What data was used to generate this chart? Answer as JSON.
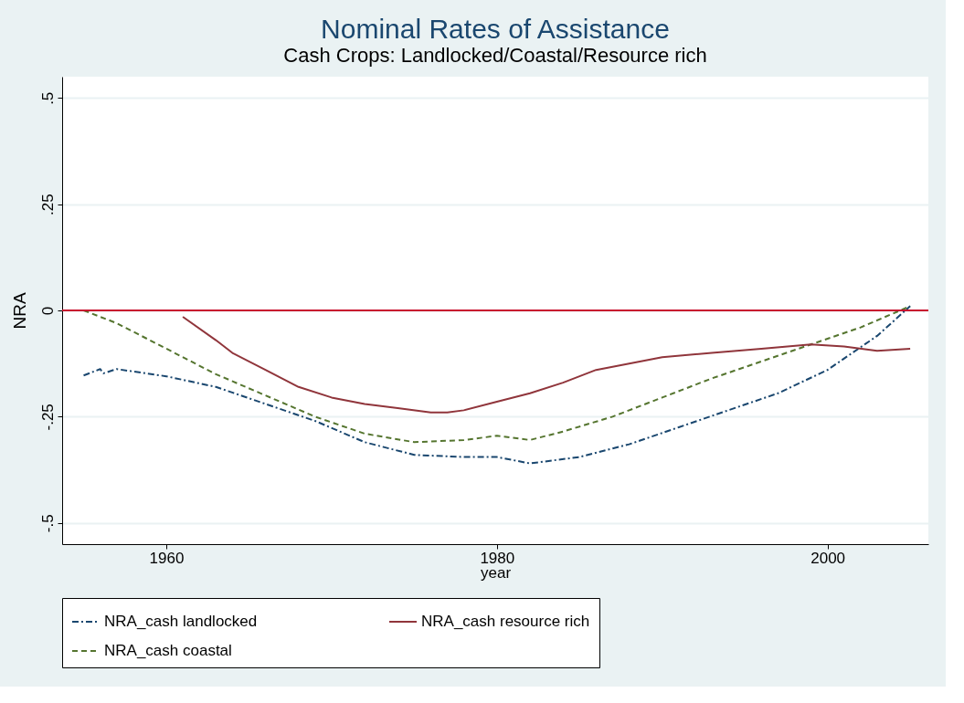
{
  "chart_data": {
    "type": "line",
    "title": "Nominal Rates of Assistance",
    "subtitle": "Cash Crops: Landlocked/Coastal/Resource rich",
    "xlabel": "year",
    "ylabel": "NRA",
    "xlim": [
      1953.7,
      2006.1
    ],
    "xticks": [
      1960,
      1980,
      2000
    ],
    "ylim": [
      -0.55,
      0.55
    ],
    "yticks": [
      {
        "value": -0.5,
        "label": "-.5"
      },
      {
        "value": -0.25,
        "label": "-.25"
      },
      {
        "value": 0,
        "label": "0"
      },
      {
        "value": 0.25,
        "label": ".25"
      },
      {
        "value": 0.5,
        "label": ".5"
      }
    ],
    "grid": "y",
    "legend": "bottom",
    "marker": "none",
    "ref_lines": [
      {
        "axis": "y",
        "value": 0,
        "label": null,
        "color": "#c8102e",
        "line_style": "solid"
      }
    ],
    "series": [
      {
        "name": "NRA_cash landlocked",
        "color": "#1a476f",
        "line_style": "dashdot",
        "x": [
          1955,
          1956,
          1956.2,
          1957,
          1960,
          1963,
          1966,
          1969,
          1972,
          1975,
          1978,
          1980,
          1982,
          1985,
          1988,
          1991,
          1994,
          1997,
          2000,
          2003,
          2005
        ],
        "values": [
          -0.153,
          -0.138,
          -0.148,
          -0.138,
          -0.155,
          -0.18,
          -0.22,
          -0.26,
          -0.31,
          -0.34,
          -0.345,
          -0.345,
          -0.36,
          -0.345,
          -0.315,
          -0.275,
          -0.235,
          -0.195,
          -0.14,
          -0.06,
          0.01
        ]
      },
      {
        "name": "NRA_cash coastal",
        "color": "#55752f",
        "line_style": "dashed",
        "x": [
          1955,
          1957,
          1960,
          1963,
          1966,
          1969,
          1972,
          1975,
          1978,
          1980,
          1982,
          1984,
          1987,
          1990,
          1993,
          1996,
          1999,
          2002,
          2005
        ],
        "values": [
          0.0,
          -0.03,
          -0.09,
          -0.15,
          -0.2,
          -0.25,
          -0.29,
          -0.31,
          -0.305,
          -0.295,
          -0.305,
          -0.285,
          -0.25,
          -0.205,
          -0.16,
          -0.12,
          -0.08,
          -0.04,
          0.01
        ]
      },
      {
        "name": "NRA_cash resource rich",
        "color": "#90353b",
        "line_style": "solid",
        "x": [
          1961,
          1963,
          1964,
          1966,
          1968,
          1970,
          1972,
          1974,
          1976,
          1977,
          1978,
          1980,
          1982,
          1984,
          1986,
          1988,
          1990,
          1993,
          1996,
          1999,
          2001,
          2003,
          2005
        ],
        "values": [
          -0.015,
          -0.07,
          -0.1,
          -0.14,
          -0.18,
          -0.205,
          -0.22,
          -0.23,
          -0.24,
          -0.24,
          -0.235,
          -0.215,
          -0.195,
          -0.17,
          -0.14,
          -0.125,
          -0.11,
          -0.1,
          -0.09,
          -0.08,
          -0.085,
          -0.095,
          -0.09
        ]
      }
    ]
  }
}
